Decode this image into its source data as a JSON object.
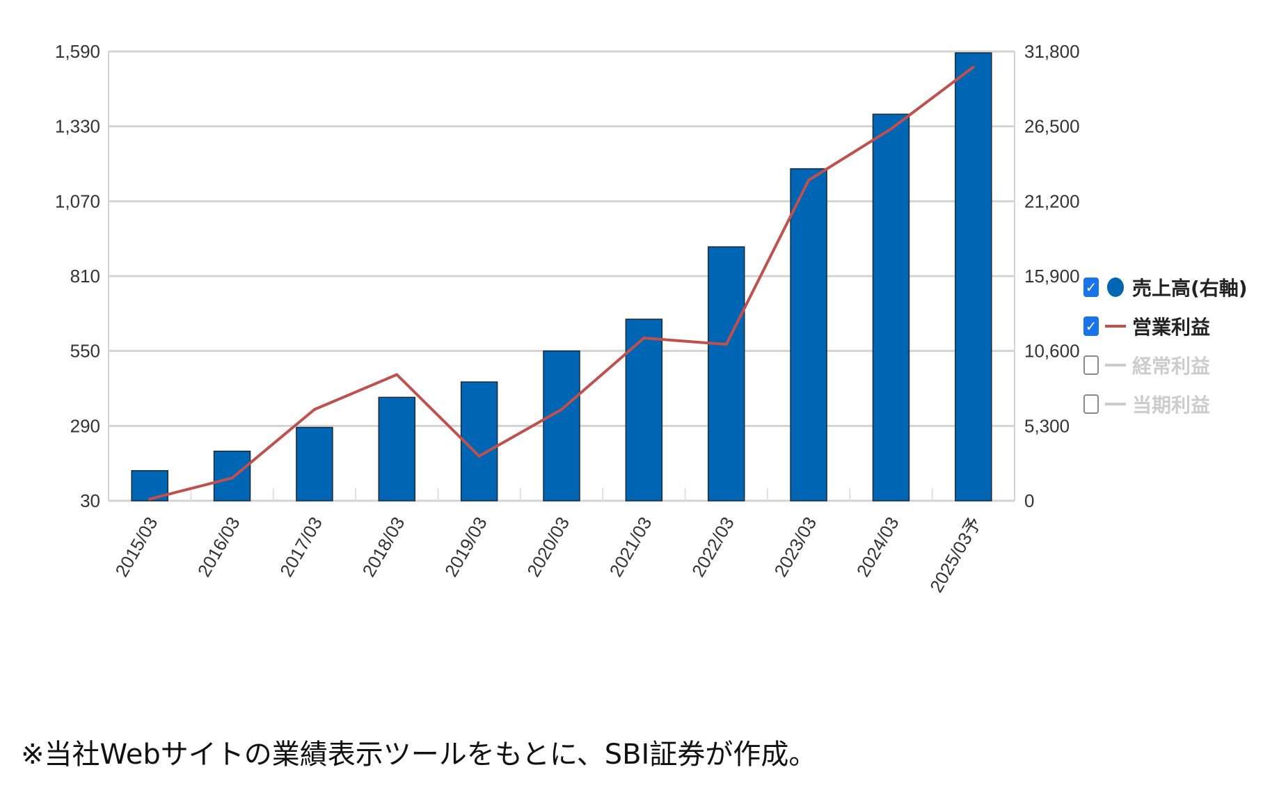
{
  "chart_data": {
    "type": "bar",
    "categories": [
      "2015/03",
      "2016/03",
      "2017/03",
      "2018/03",
      "2019/03",
      "2020/03",
      "2021/03",
      "2022/03",
      "2023/03",
      "2024/03",
      "2025/03予"
    ],
    "series": [
      {
        "name": "売上高(右軸)",
        "type": "bar",
        "axis": "right",
        "color": "#0066b3",
        "values": [
          2130,
          3510,
          5190,
          7320,
          8410,
          10600,
          12850,
          17970,
          23500,
          27360,
          31700
        ]
      },
      {
        "name": "営業利益",
        "type": "line",
        "axis": "left",
        "color": "#c0504d",
        "values": [
          36,
          109,
          347,
          468,
          185,
          347,
          595,
          573,
          1143,
          1321,
          1536
        ]
      }
    ],
    "left_axis": {
      "ticks": [
        "1,590",
        "1,330",
        "1,070",
        "810",
        "550",
        "290",
        "30"
      ],
      "ylim": [
        30,
        1590
      ]
    },
    "right_axis": {
      "ticks": [
        "31,800",
        "26,500",
        "21,200",
        "15,900",
        "10,600",
        "5,300",
        "0"
      ],
      "ylim": [
        0,
        31800
      ]
    },
    "grid": true,
    "legend_placement": "right"
  },
  "legend": [
    {
      "label": "売上高(右軸)",
      "checked": true,
      "marker": "circle",
      "color": "#0066b3"
    },
    {
      "label": "営業利益",
      "checked": true,
      "marker": "line",
      "color": "#c0504d"
    },
    {
      "label": "経常利益",
      "checked": false,
      "marker": "line",
      "color": "#cccccc"
    },
    {
      "label": "当期利益",
      "checked": false,
      "marker": "line",
      "color": "#cccccc"
    }
  ],
  "footnote": "※当社Webサイトの業績表示ツールをもとに、SBI証券が作成。"
}
